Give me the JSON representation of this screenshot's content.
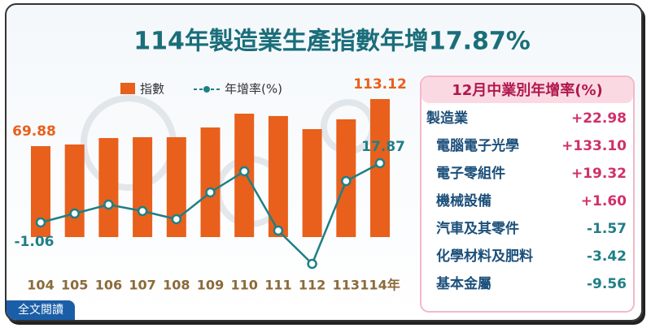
{
  "chart_data": {
    "type": "bar-line",
    "title": "114年製造業生產指數年增17.87%",
    "categories": [
      "104",
      "105",
      "106",
      "107",
      "108",
      "109",
      "110",
      "111",
      "112",
      "113",
      "114年"
    ],
    "series": [
      {
        "name": "指數",
        "type": "bar",
        "color": "#e8601c",
        "values": [
          69.88,
          71.4,
          77.3,
          78.1,
          78.1,
          87.0,
          99.7,
          97.5,
          85.5,
          94.5,
          113.12
        ]
      },
      {
        "name": "年增率(%)",
        "type": "line",
        "color": "#1f7f86",
        "values": [
          -1.06,
          1.79,
          4.64,
          2.57,
          -0.02,
          8.54,
          15.28,
          -3.65,
          -14.28,
          12.17,
          17.87
        ]
      }
    ]
  },
  "table": {
    "title": "12月中業別年增率(%)",
    "rows": [
      [
        "製造業",
        "+22.98"
      ],
      [
        "電腦電子光學",
        "+133.10"
      ],
      [
        "電子零組件",
        "+19.32"
      ],
      [
        "機械設備",
        "+1.60"
      ],
      [
        "汽車及其零件",
        "-1.57"
      ],
      [
        "化學材料及肥料",
        "-3.42"
      ],
      [
        "基本金屬",
        "-9.56"
      ]
    ]
  },
  "button": "全文閱讀"
}
